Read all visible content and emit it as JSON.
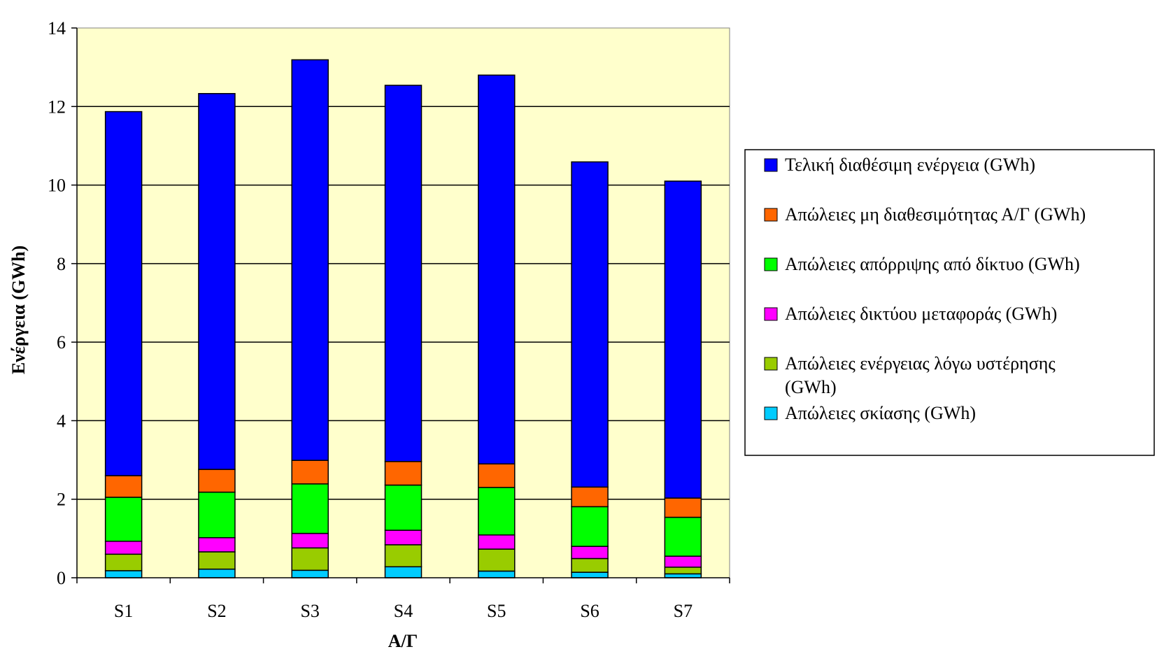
{
  "chart_data": {
    "type": "bar",
    "stacked": true,
    "categories": [
      "S1",
      "S2",
      "S3",
      "S4",
      "S5",
      "S6",
      "S7"
    ],
    "xlabel": "Α/Γ",
    "ylabel": "Ενέργεια (GWh)",
    "ylim": [
      0,
      14
    ],
    "yticks": [
      0,
      2,
      4,
      6,
      8,
      10,
      12,
      14
    ],
    "grid": true,
    "plot_background": "#FFFFCC",
    "legend_position": "right",
    "series": [
      {
        "name": "Απώλειες σκίασης (GWh)",
        "color": "#00CCFF",
        "values": [
          0.18,
          0.22,
          0.19,
          0.28,
          0.17,
          0.14,
          0.1
        ]
      },
      {
        "name": "Απώλειες ενέργειας λόγω υστέρησης (GWh)",
        "color": "#99CC00",
        "values": [
          0.42,
          0.44,
          0.57,
          0.56,
          0.56,
          0.35,
          0.17
        ]
      },
      {
        "name": "Απώλειες δικτύου μεταφοράς (GWh)",
        "color": "#FF00FF",
        "values": [
          0.33,
          0.36,
          0.37,
          0.37,
          0.36,
          0.31,
          0.28
        ]
      },
      {
        "name": "Απώλειες απόρριψης από δίκτυο (GWh)",
        "color": "#00FF00",
        "values": [
          1.12,
          1.16,
          1.26,
          1.15,
          1.21,
          1.01,
          0.99
        ]
      },
      {
        "name": "Απώλειες μη διαθεσιμότητας Α/Γ (GWh)",
        "color": "#FF6600",
        "values": [
          0.55,
          0.58,
          0.6,
          0.6,
          0.6,
          0.5,
          0.49
        ]
      },
      {
        "name": "Τελική διαθέσιμη ενέργεια (GWh)",
        "color": "#0000FF",
        "values": [
          9.27,
          9.57,
          10.2,
          9.58,
          9.9,
          8.28,
          8.07
        ]
      }
    ],
    "legend_order": [
      5,
      4,
      3,
      2,
      1,
      0
    ]
  }
}
